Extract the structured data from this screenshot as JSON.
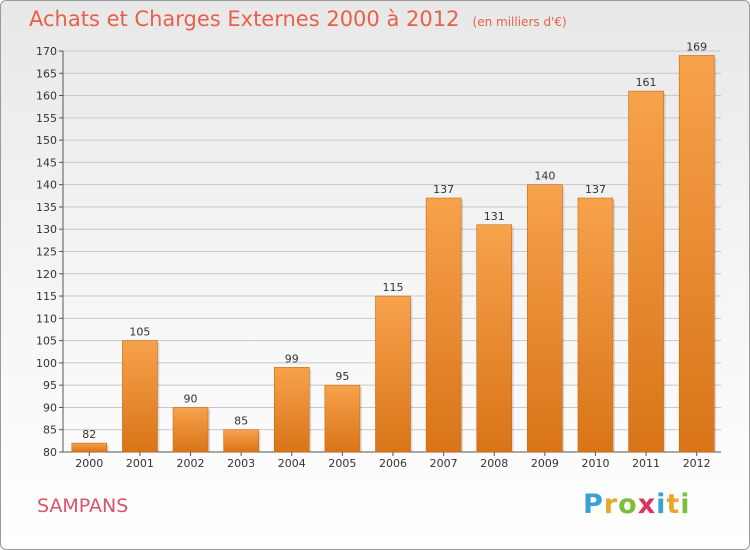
{
  "title": "Achats et Charges Externes 2000 à 2012",
  "subtitle": "(en milliers d'€)",
  "commune": "SAMPANS",
  "logo": {
    "text": "Proxiti",
    "letters": [
      {
        "ch": "P",
        "color": "#3aa0d8"
      },
      {
        "ch": "r",
        "color": "#e8a82b"
      },
      {
        "ch": "o",
        "color": "#7bbf3a"
      },
      {
        "ch": "x",
        "color": "#d9365e"
      },
      {
        "ch": "i",
        "color": "#3aa0d8"
      },
      {
        "ch": "t",
        "color": "#e8a82b"
      },
      {
        "ch": "i",
        "color": "#7bbf3a"
      }
    ]
  },
  "colors": {
    "bar_top": "#f7a24c",
    "bar_bottom": "#d97418",
    "title": "#e8604a",
    "grid": "#c8c8c8"
  },
  "chart_data": {
    "type": "bar",
    "categories": [
      "2000",
      "2001",
      "2002",
      "2003",
      "2004",
      "2005",
      "2006",
      "2007",
      "2008",
      "2009",
      "2010",
      "2011",
      "2012"
    ],
    "values": [
      82,
      105,
      90,
      85,
      99,
      95,
      115,
      137,
      131,
      140,
      137,
      161,
      169
    ],
    "title": "Achats et Charges Externes 2000 à 2012",
    "subtitle": "(en milliers d'€)",
    "ylim": [
      80,
      170
    ],
    "yticks": [
      80,
      85,
      90,
      95,
      100,
      105,
      110,
      115,
      120,
      125,
      130,
      135,
      140,
      145,
      150,
      155,
      160,
      165,
      170
    ],
    "grid": true,
    "data_labels": true
  }
}
